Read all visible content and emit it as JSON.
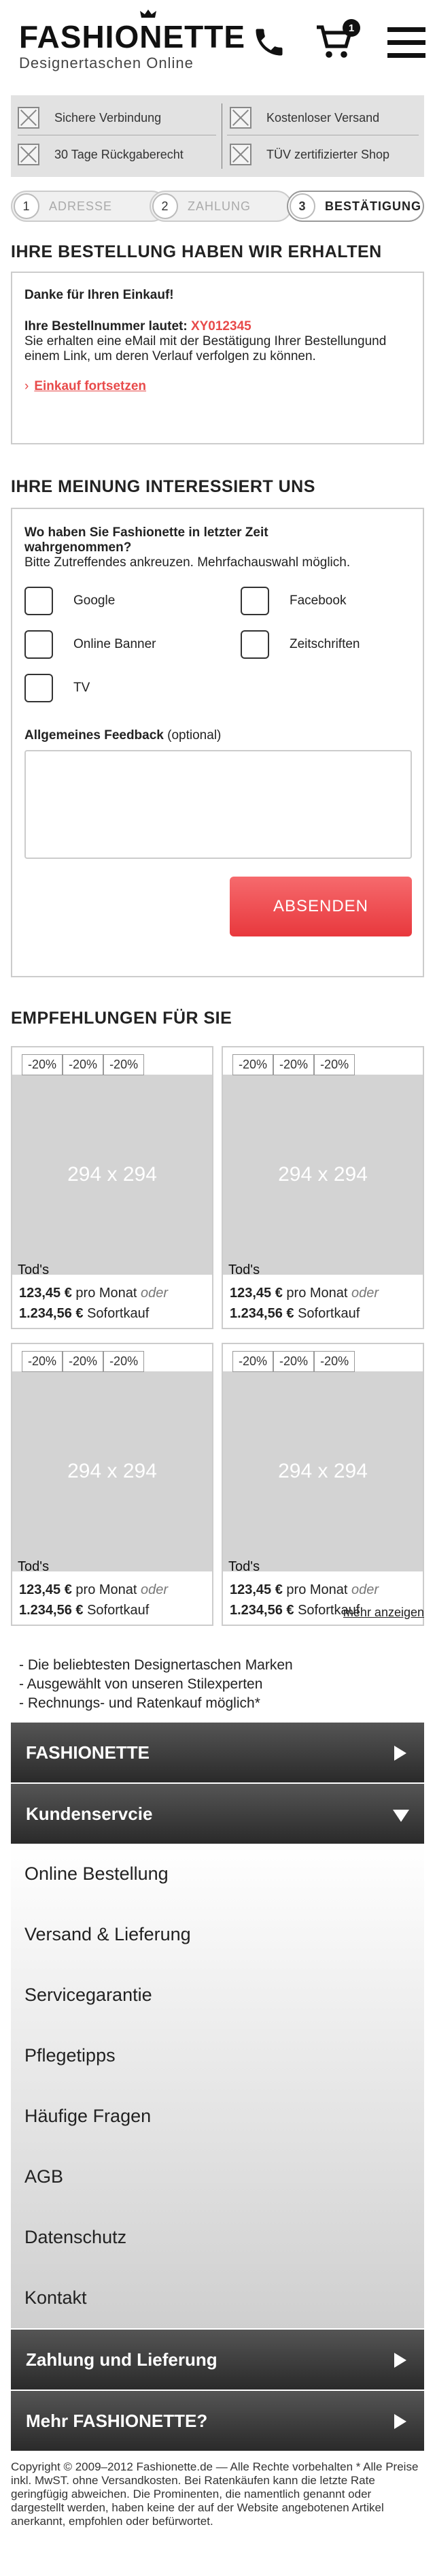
{
  "header": {
    "logo": "FASHIONETTE",
    "tagline": "Designertaschen Online",
    "cart_count": "1"
  },
  "trust": {
    "items": [
      "Sichere Verbindung",
      "Kostenloser Versand",
      "30 Tage Rückgaberecht",
      "TÜV zertifizierter Shop"
    ]
  },
  "steps": [
    {
      "num": "1",
      "label": "ADRESSE"
    },
    {
      "num": "2",
      "label": "ZAHLUNG"
    },
    {
      "num": "3",
      "label": "BESTÄTIGUNG"
    }
  ],
  "order": {
    "heading": "IHRE BESTELLUNG HABEN WIR ERHALTEN",
    "thanks": "Danke für Ihren Einkauf!",
    "number_label": "Ihre Bestellnummer lautet:",
    "number": "XY012345",
    "text": "Sie erhalten eine eMail mit der Bestätigung Ihrer Bestellungund einem Link, um deren Verlauf verfolgen zu können.",
    "continue_link": "Einkauf fortsetzen"
  },
  "survey": {
    "heading": "IHRE MEINUNG INTERESSIERT UNS",
    "question": "Wo haben Sie Fashionette in letzter Zeit wahrgenommen?",
    "hint": "Bitte Zutreffendes ankreuzen. Mehrfachauswahl möglich.",
    "options": [
      "Google",
      "Facebook",
      "Online Banner",
      "Zeitschriften",
      "TV"
    ],
    "feedback_label": "Allgemeines Feedback",
    "feedback_optional": "(optional)",
    "submit": "ABSENDEN"
  },
  "recommendations": {
    "heading": "EMPFEHLUNGEN FÜR SIE",
    "products": [
      {
        "discounts": [
          "-20%",
          "-20%",
          "-20%"
        ],
        "image": "294 x 294",
        "brand": "Tod's",
        "monthly": "123,45 €",
        "monthly_label": "pro Monat",
        "or": "oder",
        "price": "1.234,56 €",
        "price_label": "Sofortkauf"
      },
      {
        "discounts": [
          "-20%",
          "-20%",
          "-20%"
        ],
        "image": "294 x 294",
        "brand": "Tod's",
        "monthly": "123,45 €",
        "monthly_label": "pro Monat",
        "or": "oder",
        "price": "1.234,56 €",
        "price_label": "Sofortkauf"
      },
      {
        "discounts": [
          "-20%",
          "-20%",
          "-20%"
        ],
        "image": "294 x 294",
        "brand": "Tod's",
        "monthly": "123,45 €",
        "monthly_label": "pro Monat",
        "or": "oder",
        "price": "1.234,56 €",
        "price_label": "Sofortkauf"
      },
      {
        "discounts": [
          "-20%",
          "-20%",
          "-20%"
        ],
        "image": "294 x 294",
        "brand": "Tod's",
        "monthly": "123,45 €",
        "monthly_label": "pro Monat",
        "or": "oder",
        "price": "1.234,56 €",
        "price_label": "Sofortkauf"
      }
    ],
    "more": "mehr anzeigen"
  },
  "usps": [
    "-  Die beliebtesten Designertaschen Marken",
    "-  Ausgewählt von unseren Stilexperten",
    "-  Rechnungs- und Ratenkauf möglich*"
  ],
  "footer_nav": {
    "fashionette": "FASHIONETTE",
    "kundenservice": "Kundenservcie",
    "kundenservice_items": [
      "Online Bestellung",
      "Versand & Lieferung",
      "Servicegarantie",
      "Pflegetipps",
      "Häufige Fragen",
      "AGB",
      "Datenschutz",
      "Kontakt"
    ],
    "zahlung": "Zahlung und Lieferung",
    "mehr": "Mehr FASHIONETTE?"
  },
  "copyright": "Copyright © 2009–2012 Fashionette.de — Alle Rechte vorbehalten * Alle Preise inkl. MwST. ohne Versandkosten. Bei Ratenkäufen kann die letzte Rate geringfügig abweichen. Die Prominenten, die namentlich genannt oder dargestellt werden, haben keine der auf der Website angebotenen Artikel anerkannt, empfohlen oder befürwortet.",
  "colors": {
    "accent": "#e84a4a",
    "button": "#ee4a4f",
    "dark_bar": "#2f2f2f",
    "trust_bg": "#e2e2e2"
  }
}
